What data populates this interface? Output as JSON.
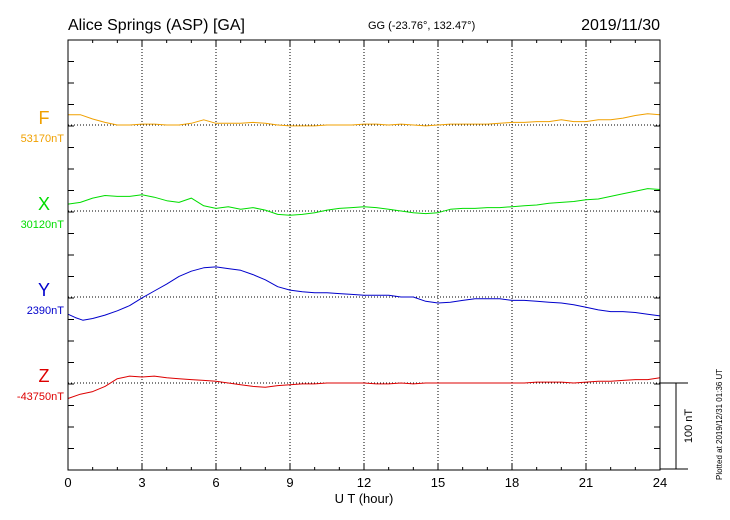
{
  "header": {
    "station": "Alice Springs (ASP)  [GA]",
    "coords": "GG (-23.76°, 132.47°)",
    "date": "2019/11/30"
  },
  "footer_note": "Plotted at 2019/12/31 01:36 UT",
  "scale_bar_label": "100 nT",
  "colors": {
    "F": "#f0a000",
    "X": "#00dd00",
    "Y": "#0000cc",
    "Z": "#dd0000",
    "axis": "#000000",
    "grid": "#000000"
  },
  "chart_data": {
    "type": "line",
    "xlabel": "U T (hour)",
    "xlim": [
      0,
      24
    ],
    "x_ticks": [
      0,
      3,
      6,
      9,
      12,
      15,
      18,
      21,
      24
    ],
    "x_tick_labels": [
      "0",
      "3",
      "6",
      "9",
      "12",
      "15",
      "18",
      "21",
      "24"
    ],
    "y_unit": "nT",
    "scale_bar_nT": 100,
    "grid": true,
    "series": [
      {
        "name": "F",
        "baseline_label": "53170nT",
        "baseline_nT": 53170,
        "x": [
          0,
          0.5,
          1,
          1.5,
          2,
          2.5,
          3,
          3.5,
          4,
          4.5,
          5,
          5.5,
          6,
          6.5,
          7,
          7.5,
          8,
          8.5,
          9,
          9.5,
          10,
          10.5,
          11,
          11.5,
          12,
          12.5,
          13,
          13.5,
          14,
          14.5,
          15,
          15.5,
          16,
          16.5,
          17,
          17.5,
          18,
          18.5,
          19,
          19.5,
          20,
          20.5,
          21,
          21.5,
          22,
          22.5,
          23,
          23.5,
          24
        ],
        "y": [
          53182,
          53182,
          53177,
          53173,
          53170,
          53170,
          53171,
          53171,
          53170,
          53170,
          53172,
          53176,
          53172,
          53172,
          53172,
          53173,
          53172,
          53170,
          53169,
          53169,
          53169,
          53170,
          53170,
          53170,
          53171,
          53171,
          53170,
          53171,
          53170,
          53169,
          53170,
          53171,
          53171,
          53171,
          53171,
          53172,
          53173,
          53173,
          53174,
          53174,
          53176,
          53174,
          53174,
          53176,
          53176,
          53178,
          53181,
          53183,
          53182
        ]
      },
      {
        "name": "X",
        "baseline_label": "30120nT",
        "baseline_nT": 30120,
        "x": [
          0,
          0.5,
          1,
          1.5,
          2,
          2.5,
          3,
          3.5,
          4,
          4.5,
          5,
          5.5,
          6,
          6.5,
          7,
          7.5,
          8,
          8.5,
          9,
          9.5,
          10,
          10.5,
          11,
          11.5,
          12,
          12.5,
          13,
          13.5,
          14,
          14.5,
          15,
          15.5,
          16,
          16.5,
          17,
          17.5,
          18,
          18.5,
          19,
          19.5,
          20,
          20.5,
          21,
          21.5,
          22,
          22.5,
          23,
          23.5,
          24
        ],
        "y": [
          30128,
          30130,
          30135,
          30138,
          30137,
          30137,
          30139,
          30136,
          30132,
          30130,
          30135,
          30126,
          30123,
          30125,
          30122,
          30124,
          30121,
          30116,
          30115,
          30116,
          30118,
          30121,
          30123,
          30124,
          30125,
          30124,
          30122,
          30120,
          30118,
          30117,
          30118,
          30122,
          30123,
          30123,
          30124,
          30124,
          30125,
          30126,
          30127,
          30129,
          30130,
          30131,
          30133,
          30134,
          30137,
          30140,
          30143,
          30146,
          30145
        ]
      },
      {
        "name": "Y",
        "baseline_label": "2390nT",
        "baseline_nT": 2390,
        "x": [
          0,
          0.3,
          0.6,
          1,
          1.5,
          2,
          2.5,
          3,
          3.5,
          4,
          4.5,
          5,
          5.5,
          6,
          6.5,
          7,
          7.5,
          8,
          8.5,
          9,
          9.5,
          10,
          10.5,
          11,
          11.5,
          12,
          12.5,
          13,
          13.5,
          14,
          14.5,
          15,
          15.5,
          16,
          16.5,
          17,
          17.5,
          18,
          18.5,
          19,
          19.5,
          20,
          20.5,
          21,
          21.5,
          22,
          22.5,
          23,
          23.5,
          24
        ],
        "y": [
          2370,
          2366,
          2363,
          2365,
          2369,
          2374,
          2380,
          2389,
          2397,
          2405,
          2414,
          2420,
          2424,
          2425,
          2423,
          2421,
          2416,
          2410,
          2402,
          2398,
          2396,
          2395,
          2395,
          2394,
          2393,
          2392,
          2392,
          2392,
          2390,
          2390,
          2385,
          2383,
          2384,
          2386,
          2388,
          2388,
          2388,
          2386,
          2386,
          2385,
          2384,
          2383,
          2381,
          2378,
          2375,
          2373,
          2373,
          2372,
          2370,
          2368
        ]
      },
      {
        "name": "Z",
        "baseline_label": "-43750nT",
        "baseline_nT": -43750,
        "x": [
          0,
          0.5,
          1,
          1.5,
          2,
          2.5,
          3,
          3.5,
          4,
          4.5,
          5,
          5.5,
          6,
          6.5,
          7,
          7.5,
          8,
          8.5,
          9,
          9.5,
          10,
          10.5,
          11,
          11.5,
          12,
          12.5,
          13,
          13.5,
          14,
          14.5,
          15,
          15.5,
          16,
          16.5,
          17,
          17.5,
          18,
          18.5,
          19,
          19.5,
          20,
          20.5,
          21,
          21.5,
          22,
          22.5,
          23,
          23.5,
          24
        ],
        "y": [
          -43768,
          -43763,
          -43760,
          -43754,
          -43745,
          -43742,
          -43743,
          -43742,
          -43744,
          -43745,
          -43746,
          -43747,
          -43748,
          -43750,
          -43752,
          -43754,
          -43755,
          -43753,
          -43752,
          -43751,
          -43751,
          -43750,
          -43750,
          -43750,
          -43750,
          -43751,
          -43751,
          -43750,
          -43751,
          -43750,
          -43750,
          -43750,
          -43750,
          -43750,
          -43750,
          -43750,
          -43750,
          -43750,
          -43749,
          -43749,
          -43749,
          -43750,
          -43749,
          -43748,
          -43748,
          -43747,
          -43746,
          -43746,
          -43744
        ]
      }
    ]
  }
}
